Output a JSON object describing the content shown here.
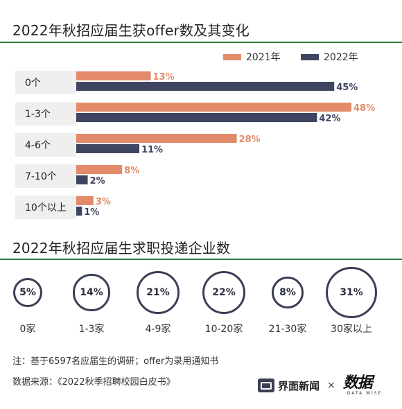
{
  "title": "2022年秋招应届生获offer数及其变化",
  "legend": {
    "items": [
      "2021年",
      "2022年"
    ]
  },
  "colors": {
    "series2021": "#e38a6b",
    "series2022": "#3f4560",
    "rule": "#2f7d3a",
    "band": "#efefef"
  },
  "chart_data": [
    {
      "type": "bar",
      "orientation": "horizontal",
      "title": "2022年秋招应届生获offer数及其变化",
      "categories": [
        "0个",
        "1-3个",
        "4-6个",
        "7-10个",
        "10个以上"
      ],
      "series": [
        {
          "name": "2021年",
          "values": [
            13,
            48,
            28,
            8,
            3
          ]
        },
        {
          "name": "2022年",
          "values": [
            45,
            42,
            11,
            2,
            1
          ]
        }
      ],
      "value_suffix": "%",
      "xlim": [
        0,
        48
      ],
      "grid": false,
      "legend_position": "top-right"
    },
    {
      "type": "bubble",
      "title": "2022年秋招应届生求职投递企业数",
      "categories": [
        "0家",
        "1-3家",
        "4-9家",
        "10-20家",
        "21-30家",
        "30家以上"
      ],
      "values": [
        5,
        14,
        21,
        22,
        8,
        31
      ],
      "value_suffix": "%"
    }
  ],
  "section2_title": "2022年秋招应届生求职投递企业数",
  "notes": {
    "note": "注：基于6597名应届生的调研；offer为录用通知书",
    "source": "数据来源：《2022秋季招聘校园白皮书》"
  },
  "branding": {
    "jiemian": "界面新闻",
    "times": "×",
    "datawise_glyph": "数据",
    "datawise_text": "DATA WISE"
  }
}
